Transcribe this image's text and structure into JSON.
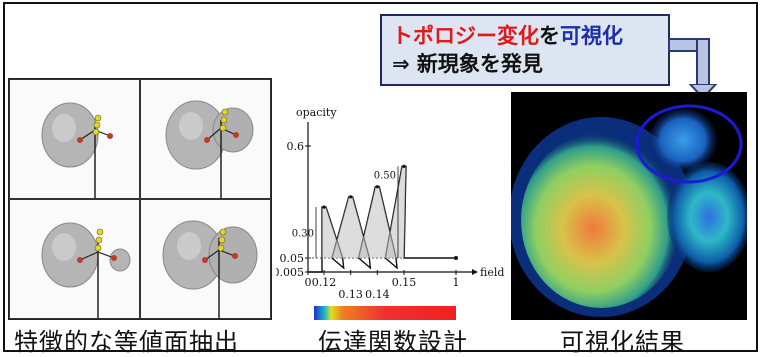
{
  "callout": {
    "line1_red": "トポロジー変化",
    "line1_mid": "を",
    "line1_blue": "可視化",
    "line2": "⇒ 新現象を発見"
  },
  "captions": {
    "left": "特徴的な等値面抽出",
    "middle": "伝達関数設計",
    "right": "可視化結果"
  },
  "chart_data": {
    "type": "line",
    "ylabel": "opacity",
    "xlabel": "field",
    "yticks": [
      "0.6",
      "0.05",
      "0.005"
    ],
    "xticks": [
      "0",
      "0.12",
      "0.13",
      "0.14",
      "0.15",
      "1"
    ],
    "annotations": [
      "0.30",
      "0.50"
    ],
    "peaks": [
      {
        "x": 0.12,
        "y": 0.3
      },
      {
        "x": 0.13,
        "y": 0.35
      },
      {
        "x": 0.14,
        "y": 0.4
      },
      {
        "x": 0.15,
        "y": 0.5
      }
    ],
    "baseline": 0.05,
    "floor": 0.005,
    "colorbar": [
      "#2030d0",
      "#20c0c0",
      "#e0e020",
      "#f08020",
      "#f03030",
      "#f02020"
    ]
  }
}
